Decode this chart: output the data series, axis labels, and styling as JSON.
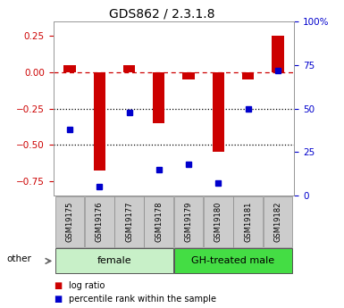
{
  "title": "GDS862 / 2.3.1.8",
  "samples": [
    "GSM19175",
    "GSM19176",
    "GSM19177",
    "GSM19178",
    "GSM19179",
    "GSM19180",
    "GSM19181",
    "GSM19182"
  ],
  "log_ratio": [
    0.05,
    -0.68,
    0.05,
    -0.35,
    -0.05,
    -0.55,
    -0.05,
    0.25
  ],
  "percentile_rank": [
    38,
    5,
    48,
    15,
    18,
    7,
    50,
    72
  ],
  "groups": [
    {
      "label": "female",
      "color": "#c8f0c8",
      "start": 0,
      "end": 3
    },
    {
      "label": "GH-treated male",
      "color": "#44dd44",
      "start": 4,
      "end": 7
    }
  ],
  "ylim_left": [
    -0.85,
    0.35
  ],
  "ylim_right": [
    0,
    100
  ],
  "yticks_left": [
    0.25,
    0,
    -0.25,
    -0.5,
    -0.75
  ],
  "yticks_right": [
    100,
    75,
    50,
    25,
    0
  ],
  "bar_color": "#cc0000",
  "square_color": "#0000cc",
  "dashed_line_color": "#cc0000",
  "dotted_line_color": "#000000",
  "title_color": "#000000",
  "left_tick_color": "#cc0000",
  "right_tick_color": "#0000cc",
  "legend_log_ratio_color": "#cc0000",
  "legend_percentile_color": "#0000cc",
  "other_label": "other",
  "sample_box_color": "#cccccc",
  "background_color": "#ffffff"
}
